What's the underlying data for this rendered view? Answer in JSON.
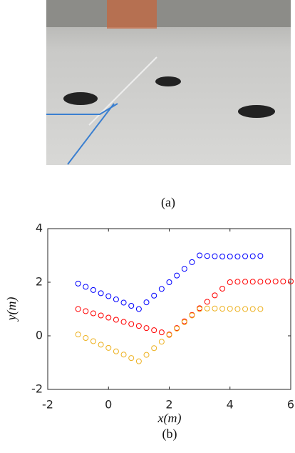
{
  "figure_a": {
    "caption": "(a)"
  },
  "chart_data": {
    "type": "scatter",
    "caption": "(b)",
    "xlabel": "x(m)",
    "ylabel": "y(m)",
    "xlim": [
      -2,
      6
    ],
    "ylim": [
      -2,
      4
    ],
    "xticks": [
      -2,
      0,
      2,
      4,
      6
    ],
    "yticks": [
      -2,
      0,
      2,
      4
    ],
    "marker": "circle",
    "series": [
      {
        "color": "#0000ff",
        "x": [
          -1,
          -0.75,
          -0.5,
          -0.25,
          0,
          0.25,
          0.5,
          0.75,
          1,
          1.25,
          1.5,
          1.75,
          2,
          2.25,
          2.5,
          2.75,
          3,
          3.25,
          3.5,
          3.75,
          4,
          4.25,
          4.5,
          4.75,
          5
        ],
        "values": [
          1.95,
          1.83,
          1.71,
          1.59,
          1.48,
          1.36,
          1.24,
          1.12,
          1.0,
          1.25,
          1.5,
          1.75,
          2.0,
          2.25,
          2.5,
          2.75,
          3.0,
          2.98,
          2.97,
          2.96,
          2.96,
          2.96,
          2.97,
          2.97,
          2.98
        ]
      },
      {
        "color": "#ff0000",
        "x": [
          -1,
          -0.75,
          -0.5,
          -0.25,
          0,
          0.25,
          0.5,
          0.75,
          1,
          1.25,
          1.5,
          1.75,
          2,
          2.25,
          2.5,
          2.75,
          3,
          3.25,
          3.5,
          3.75,
          4,
          4.25,
          4.5,
          4.75,
          5,
          5.25,
          5.5,
          5.75,
          6
        ],
        "values": [
          1.0,
          0.92,
          0.84,
          0.76,
          0.68,
          0.6,
          0.52,
          0.44,
          0.37,
          0.29,
          0.21,
          0.13,
          0.05,
          0.29,
          0.54,
          0.78,
          1.03,
          1.27,
          1.51,
          1.76,
          2.0,
          2.02,
          2.02,
          2.02,
          2.02,
          2.03,
          2.03,
          2.03,
          2.03
        ]
      },
      {
        "color": "#edb120",
        "x": [
          -1,
          -0.75,
          -0.5,
          -0.25,
          0,
          0.25,
          0.5,
          0.75,
          1,
          1.25,
          1.5,
          1.75,
          2,
          2.25,
          2.5,
          2.75,
          3,
          3.25,
          3.5,
          3.75,
          4,
          4.25,
          4.5,
          4.75,
          5
        ],
        "values": [
          0.05,
          -0.08,
          -0.2,
          -0.33,
          -0.45,
          -0.58,
          -0.7,
          -0.83,
          -0.95,
          -0.71,
          -0.46,
          -0.22,
          0.03,
          0.27,
          0.51,
          0.76,
          1.0,
          1.02,
          1.02,
          1.01,
          1.01,
          1.0,
          1.0,
          1.0,
          1.0
        ]
      }
    ]
  }
}
